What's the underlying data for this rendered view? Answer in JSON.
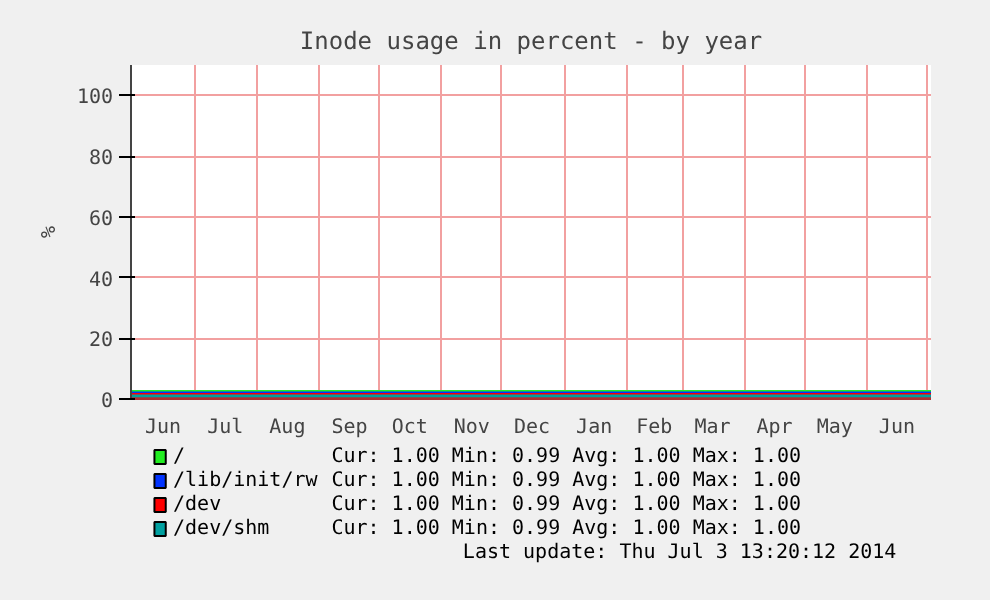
{
  "chart_data": {
    "type": "line",
    "title": "Inode usage in percent - by year",
    "ylabel": "%",
    "xlim": [
      "2013-05-30",
      "2014-07-03"
    ],
    "ylim": [
      0,
      110
    ],
    "yticks": [
      0,
      20,
      40,
      60,
      80,
      100
    ],
    "xticks": [
      {
        "value": "2013-06-15",
        "label": "Jun"
      },
      {
        "value": "2013-07-01",
        "label": null
      },
      {
        "value": "2013-07-16",
        "label": "Jul"
      },
      {
        "value": "2013-08-01",
        "label": null
      },
      {
        "value": "2013-08-16",
        "label": "Aug"
      },
      {
        "value": "2013-09-01",
        "label": null
      },
      {
        "value": "2013-09-16",
        "label": "Sep"
      },
      {
        "value": "2013-10-01",
        "label": null
      },
      {
        "value": "2013-10-16",
        "label": "Oct"
      },
      {
        "value": "2013-11-01",
        "label": null
      },
      {
        "value": "2013-11-16",
        "label": "Nov"
      },
      {
        "value": "2013-12-01",
        "label": null
      },
      {
        "value": "2013-12-16",
        "label": "Dec"
      },
      {
        "value": "2014-01-01",
        "label": null
      },
      {
        "value": "2014-01-16",
        "label": "Jan"
      },
      {
        "value": "2014-02-01",
        "label": null
      },
      {
        "value": "2014-02-15",
        "label": "Feb"
      },
      {
        "value": "2014-03-01",
        "label": null
      },
      {
        "value": "2014-03-16",
        "label": "Mar"
      },
      {
        "value": "2014-04-01",
        "label": null
      },
      {
        "value": "2014-04-16",
        "label": "Apr"
      },
      {
        "value": "2014-05-01",
        "label": null
      },
      {
        "value": "2014-05-16",
        "label": "May"
      },
      {
        "value": "2014-06-01",
        "label": null
      },
      {
        "value": "2014-06-16",
        "label": "Jun"
      },
      {
        "value": "2014-07-01",
        "label": null
      }
    ],
    "grid": true,
    "legend": "bottom",
    "marker": "none",
    "line_style": "solid",
    "x": [
      "2013-05-30",
      "2014-07-03"
    ],
    "series": [
      {
        "name": "/",
        "color": "#22ee22",
        "values": [
          1,
          1
        ]
      },
      {
        "name": "/lib/init/rw",
        "color": "#0033ff",
        "values": [
          1,
          1
        ]
      },
      {
        "name": "/dev",
        "color": "#ff0000",
        "values": [
          1,
          1
        ]
      },
      {
        "name": "/dev/shm",
        "color": "#00a0a0",
        "values": [
          1,
          1
        ]
      }
    ],
    "annotations": [
      "Cur:      1.00   Min:      0.99   Avg:      1.00   Max:      1.00",
      "Cur:      1.00   Min:      0.99   Avg:      1.00   Max:      1.00",
      "Cur:      1.00   Min:      0.99   Avg:      1.00   Max:      1.00",
      "Cur:      1.00   Min:      0.99   Avg:      1.00   Max:      1.00",
      "Last update: Thu Jul  3 13:20:12 2014"
    ]
  }
}
